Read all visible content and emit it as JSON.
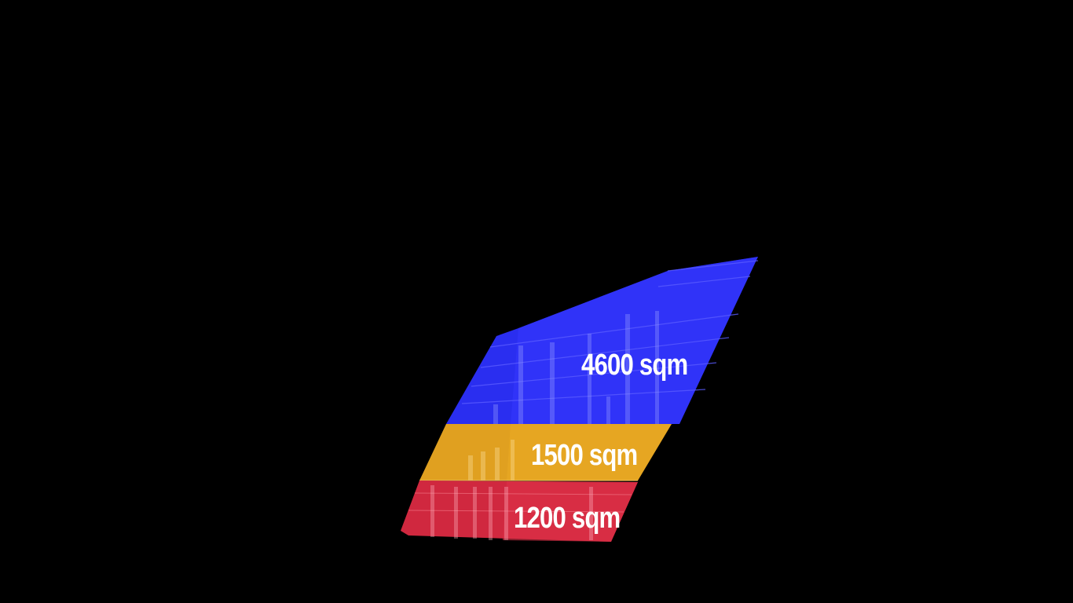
{
  "zones": [
    {
      "id": "top",
      "label": "4600 sqm",
      "color": "#2a2ef0"
    },
    {
      "id": "middle",
      "label": "1500 sqm",
      "color": "#e0a020"
    },
    {
      "id": "bottom",
      "label": "1200 sqm",
      "color": "#d0283f"
    }
  ]
}
